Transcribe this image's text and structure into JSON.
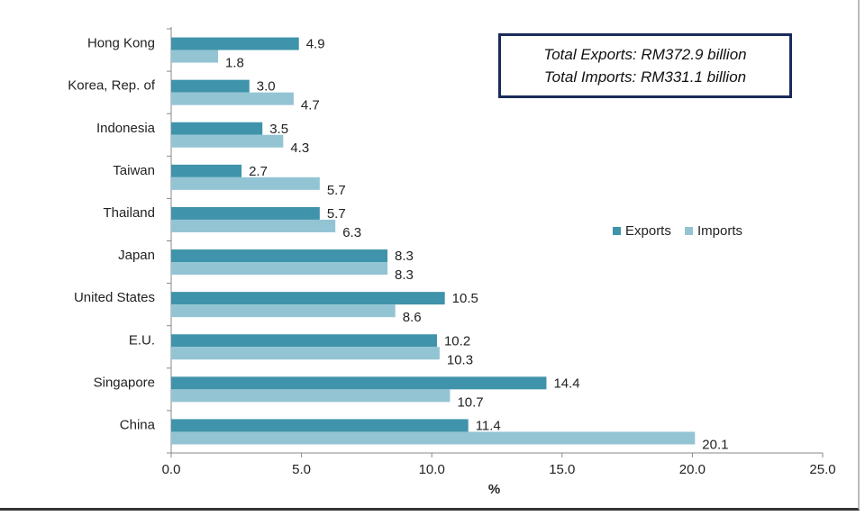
{
  "chart_data": {
    "type": "bar",
    "orientation": "horizontal",
    "categories": [
      "Hong Kong",
      "Korea, Rep. of",
      "Indonesia",
      "Taiwan",
      "Thailand",
      "Japan",
      "United States",
      "E.U.",
      "Singapore",
      "China"
    ],
    "series": [
      {
        "name": "Exports",
        "color": "#3f93aa",
        "values": [
          4.9,
          3.0,
          3.5,
          2.7,
          5.7,
          8.3,
          10.5,
          10.2,
          14.4,
          11.4
        ]
      },
      {
        "name": "Imports",
        "color": "#93c4d4",
        "values": [
          1.8,
          4.7,
          4.3,
          5.7,
          6.3,
          8.3,
          8.6,
          10.3,
          10.7,
          20.1
        ]
      }
    ],
    "xlabel": "%",
    "xlim": [
      0,
      25
    ],
    "xticks": [
      "0.0",
      "5.0",
      "10.0",
      "15.0",
      "20.0",
      "25.0"
    ],
    "grid": false,
    "legend": "right",
    "annotation": [
      "Total Exports: RM372.9 billion",
      "Total Imports: RM331.1 billion"
    ]
  }
}
